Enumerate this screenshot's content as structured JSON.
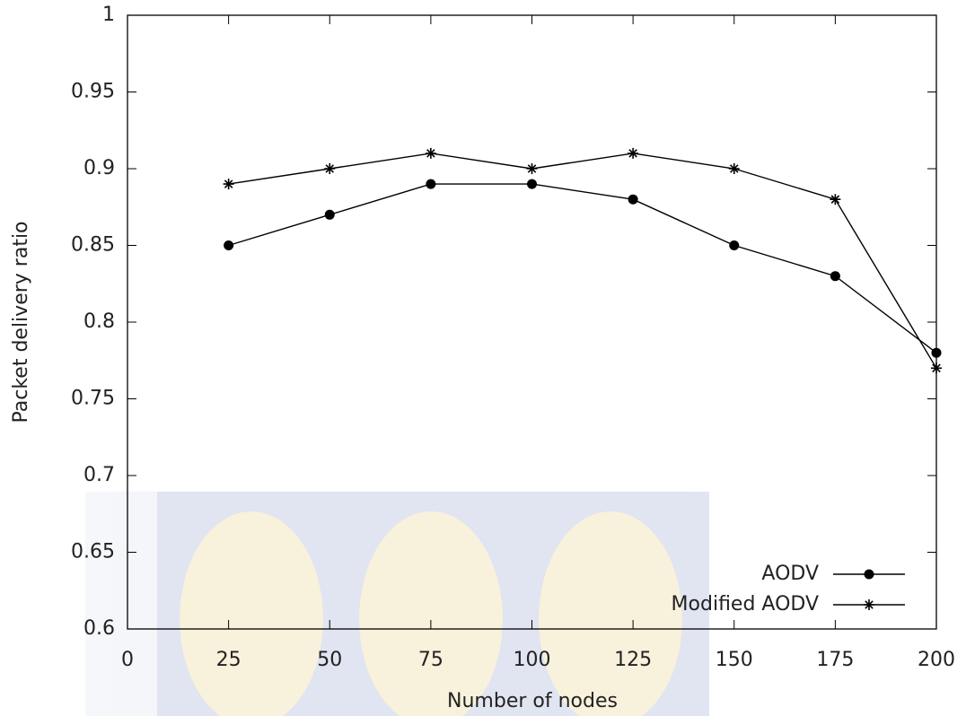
{
  "chart_data": {
    "type": "line",
    "x_label": "Number of nodes",
    "y_label": "Packet delivery ratio",
    "x": [
      25,
      50,
      75,
      100,
      125,
      150,
      175,
      200
    ],
    "series": [
      {
        "name": "AODV",
        "color": "#000000",
        "marker": "circle",
        "values": [
          0.85,
          0.87,
          0.89,
          0.89,
          0.88,
          0.85,
          0.83,
          0.78
        ]
      },
      {
        "name": "Modified AODV",
        "color": "#000000",
        "marker": "star",
        "values": [
          0.89,
          0.9,
          0.91,
          0.9,
          0.91,
          0.9,
          0.88,
          0.77
        ]
      }
    ],
    "xlim": [
      0,
      200
    ],
    "xticks": [
      0,
      25,
      50,
      75,
      100,
      125,
      150,
      175,
      200
    ],
    "ylim": [
      0.6,
      1
    ],
    "yticks": [
      0.6,
      0.65,
      0.7,
      0.75,
      0.8,
      0.85,
      0.9,
      0.95,
      1
    ],
    "legend": "lower right"
  }
}
